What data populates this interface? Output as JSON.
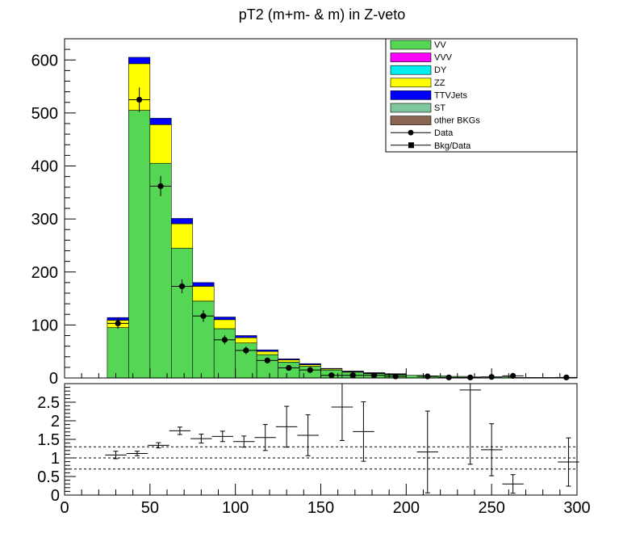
{
  "chart_data": [
    {
      "type": "bar",
      "stacked": true,
      "title": "pT2 (m+m- & m) in Z-veto",
      "xlim": [
        0,
        300
      ],
      "ylim": [
        0,
        640
      ],
      "yticks": [
        0,
        100,
        200,
        300,
        400,
        500,
        600
      ],
      "xticks": [
        0,
        50,
        100,
        150,
        200,
        250,
        300
      ],
      "bin_edges": [
        0,
        12.5,
        25,
        37.5,
        50,
        62.5,
        75,
        87.5,
        100,
        112.5,
        125,
        137.5,
        150,
        162.5,
        175,
        187.5,
        200,
        212.5,
        225,
        237.5,
        250,
        262.5,
        275,
        287.5,
        300
      ],
      "legend_position": "top-right",
      "series": [
        {
          "name": "VV",
          "color": "#55d655",
          "values": [
            0,
            0,
            95,
            505,
            405,
            245,
            145,
            93,
            66,
            44,
            30,
            22,
            15,
            11,
            8,
            6,
            5,
            4,
            3,
            2,
            2,
            1,
            1,
            1
          ]
        },
        {
          "name": "VVV",
          "color": "#ff00ff",
          "values": [
            0,
            0,
            0,
            0,
            0,
            0,
            0,
            0,
            0,
            0,
            0,
            0,
            0,
            0,
            0,
            0,
            0,
            0,
            0,
            0,
            0,
            0,
            0,
            0
          ]
        },
        {
          "name": "DY",
          "color": "#00f0f0",
          "values": [
            0,
            0,
            0,
            0,
            0,
            0,
            0,
            0,
            0,
            0,
            0,
            0,
            0,
            0,
            0,
            0,
            0,
            0,
            0,
            0,
            0,
            0,
            0,
            0
          ]
        },
        {
          "name": "ZZ",
          "color": "#ffff00",
          "values": [
            0,
            0,
            14,
            88,
            73,
            46,
            28,
            17,
            10,
            6,
            4,
            3,
            2,
            1,
            1,
            1,
            0,
            0,
            0,
            0,
            0,
            0,
            0,
            0
          ]
        },
        {
          "name": "TTVJets",
          "color": "#0000ff",
          "values": [
            0,
            0,
            5,
            12,
            12,
            10,
            7,
            5,
            4,
            3,
            2,
            2,
            1,
            1,
            1,
            1,
            0,
            0,
            0,
            0,
            0,
            0,
            0,
            0
          ]
        },
        {
          "name": "ST",
          "color": "#7fc69c",
          "values": [
            0,
            0,
            0,
            0,
            0,
            0,
            0,
            0,
            0,
            0,
            0,
            0,
            0,
            0,
            0,
            0,
            0,
            0,
            0,
            0,
            0,
            0,
            0,
            0
          ]
        },
        {
          "name": "other BKGs",
          "color": "#8b6653",
          "values": [
            0,
            0,
            0,
            0,
            0,
            0,
            0,
            0,
            0,
            0,
            0,
            0,
            0,
            0,
            0,
            0,
            0,
            0,
            0,
            0,
            0,
            0,
            0,
            0
          ]
        }
      ],
      "data_points": {
        "name": "Data",
        "x": [
          31.25,
          43.75,
          56.25,
          68.75,
          81.25,
          93.75,
          106.25,
          118.75,
          131.25,
          143.75,
          156.25,
          168.75,
          181.25,
          193.75,
          212.5,
          225,
          237.5,
          250,
          262.5,
          293.75
        ],
        "y": [
          103,
          525,
          362,
          173,
          117,
          72,
          52,
          33,
          19,
          15,
          5,
          5,
          5,
          3,
          3,
          1,
          1,
          2,
          4,
          1
        ],
        "xerr": [
          6.25,
          6.25,
          6.25,
          6.25,
          6.25,
          6.25,
          6.25,
          6.25,
          6.25,
          6.25,
          6.25,
          6.25,
          6.25,
          6.25,
          6.25,
          6.25,
          6.25,
          6.25,
          6.25,
          6.25
        ],
        "yerr": [
          10,
          23,
          19,
          13,
          11,
          8.5,
          7.2,
          5.7,
          4.4,
          3.9,
          2.2,
          2.2,
          2.2,
          1.7,
          1.7,
          1,
          1,
          1.4,
          2,
          1
        ]
      },
      "legend_entries": [
        "VV",
        "VVV",
        "DY",
        "ZZ",
        "TTVJets",
        "ST",
        "other BKGs",
        "Data",
        "Bkg/Data"
      ]
    },
    {
      "type": "scatter",
      "name": "Bkg/Data",
      "xlim": [
        0,
        300
      ],
      "ylim": [
        0,
        3
      ],
      "yticks": [
        0,
        0.5,
        1,
        1.5,
        2,
        2.5
      ],
      "xticks": [
        0,
        50,
        100,
        150,
        200,
        250,
        300
      ],
      "reference_lines": [
        0.7,
        1.0,
        1.3
      ],
      "x": [
        30,
        42.5,
        55,
        67.5,
        80,
        92.5,
        105,
        117.5,
        130,
        142.5,
        162.5,
        175,
        212.5,
        237.5,
        250,
        262.5,
        295
      ],
      "y": [
        1.08,
        1.12,
        1.34,
        1.73,
        1.52,
        1.58,
        1.44,
        1.55,
        1.84,
        1.61,
        2.37,
        1.71,
        1.16,
        2.83,
        1.22,
        0.3,
        0.89
      ],
      "xerr": [
        6.25,
        6.25,
        6.25,
        6.25,
        6.25,
        6.25,
        6.25,
        6.25,
        6.25,
        6.25,
        6.25,
        6.25,
        6.25,
        6.25,
        6.25,
        6.25,
        6.25
      ],
      "yerr": [
        0.1,
        0.06,
        0.07,
        0.1,
        0.12,
        0.14,
        0.15,
        0.35,
        0.55,
        0.55,
        0.9,
        0.8,
        1.1,
        2,
        0.7,
        0.25,
        0.65
      ]
    }
  ]
}
